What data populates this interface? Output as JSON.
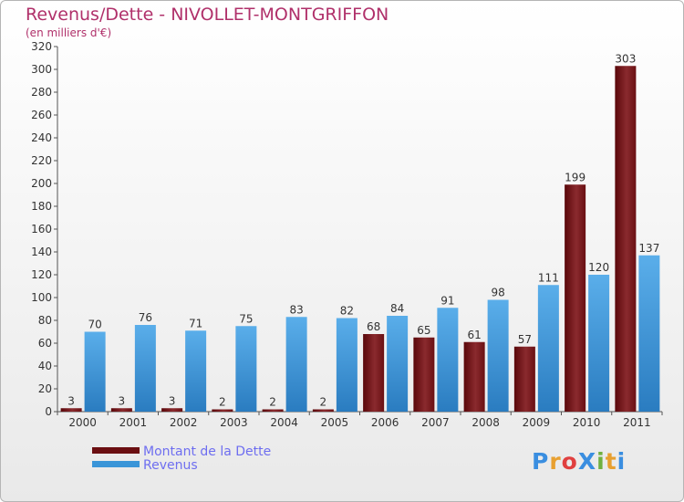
{
  "chart_data": {
    "type": "bar",
    "title": "Revenus/Dette - NIVOLLET-MONTGRIFFON",
    "subtitle": "(en milliers d'€)",
    "categories": [
      "2000",
      "2001",
      "2002",
      "2003",
      "2004",
      "2005",
      "2006",
      "2007",
      "2008",
      "2009",
      "2010",
      "2011"
    ],
    "series": [
      {
        "name": "Montant de la Dette",
        "color": "#6b0f12",
        "values": [
          3,
          3,
          3,
          2,
          2,
          2,
          68,
          65,
          61,
          57,
          199,
          303
        ]
      },
      {
        "name": "Revenus",
        "color": "#3a95d8",
        "values": [
          70,
          76,
          71,
          75,
          83,
          82,
          84,
          91,
          98,
          111,
          120,
          137
        ]
      }
    ],
    "ylim": [
      0,
      320
    ],
    "yticks": [
      0,
      20,
      40,
      60,
      80,
      100,
      120,
      140,
      160,
      180,
      200,
      220,
      240,
      260,
      280,
      300,
      320
    ],
    "grid": false,
    "legend_position": "bottom-left"
  },
  "legend": {
    "items": [
      {
        "label": "Montant de la Dette",
        "color": "#6b0f12"
      },
      {
        "label": "Revenus",
        "color": "#3a95d8"
      }
    ]
  },
  "logo": {
    "text": "ProXiti",
    "letters": [
      "P",
      "r",
      "o",
      "X",
      "i",
      "t",
      "i"
    ],
    "colors": [
      "#3a8ee0",
      "#e8a030",
      "#e04040",
      "#3a8ee0",
      "#70b040",
      "#e8a030",
      "#3a8ee0"
    ]
  }
}
